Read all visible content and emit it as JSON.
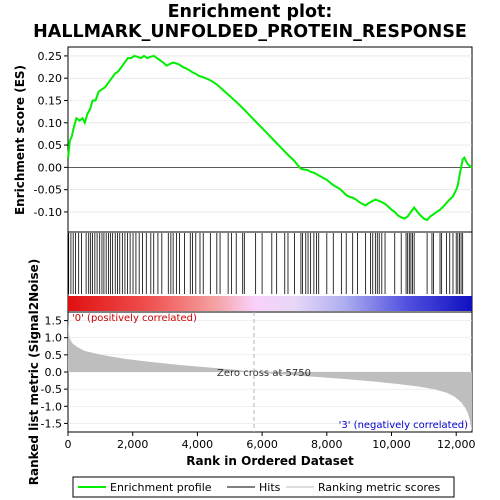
{
  "title_line1": "Enrichment plot:",
  "title_line2": "HALLMARK_UNFOLDED_PROTEIN_RESPONSE",
  "colors": {
    "profile": "#00ee00",
    "hits": "#000000",
    "metric_fill": "#bebebe",
    "positive_label": "#cc0000",
    "negative_label": "#0000cc",
    "zero_line": "#b4b4b4"
  },
  "chart_data": [
    {
      "type": "line",
      "panel": "enrichment-profile",
      "ylabel": "Enrichment score (ES)",
      "xlim": [
        0,
        12488
      ],
      "ylim": [
        -0.145,
        0.27
      ],
      "yticks": [
        0.25,
        0.2,
        0.15,
        0.1,
        0.05,
        0.0,
        -0.05,
        -0.1
      ],
      "ytick_labels": [
        "0.25",
        "0.20",
        "0.15",
        "0.10",
        "0.05",
        "0.00",
        "-0.05",
        "-0.10"
      ],
      "series": [
        {
          "name": "Enrichment profile",
          "x": [
            0,
            60,
            120,
            180,
            260,
            360,
            450,
            520,
            600,
            680,
            760,
            850,
            950,
            1050,
            1150,
            1250,
            1350,
            1450,
            1550,
            1650,
            1750,
            1850,
            1950,
            2050,
            2150,
            2250,
            2350,
            2450,
            2550,
            2650,
            2750,
            2850,
            2950,
            3050,
            3150,
            3250,
            3350,
            3450,
            3550,
            3650,
            3750,
            3850,
            3950,
            4050,
            4150,
            4250,
            4350,
            4450,
            4600,
            4800,
            5000,
            5200,
            5400,
            5600,
            5800,
            6000,
            6200,
            6400,
            6600,
            6800,
            7000,
            7100,
            7200,
            7300,
            7400,
            7500,
            7600,
            7700,
            7800,
            7900,
            8000,
            8100,
            8200,
            8300,
            8400,
            8500,
            8600,
            8700,
            8800,
            8900,
            9000,
            9100,
            9200,
            9300,
            9400,
            9500,
            9600,
            9700,
            9800,
            9900,
            10000,
            10100,
            10200,
            10300,
            10400,
            10500,
            10600,
            10700,
            10800,
            10900,
            11000,
            11100,
            11200,
            11300,
            11400,
            11500,
            11600,
            11700,
            11800,
            11900,
            12000,
            12050,
            12100,
            12150,
            12200,
            12250,
            12300,
            12350,
            12400,
            12488
          ],
          "y": [
            0.02,
            0.06,
            0.07,
            0.09,
            0.11,
            0.105,
            0.11,
            0.1,
            0.12,
            0.13,
            0.15,
            0.15,
            0.17,
            0.175,
            0.18,
            0.19,
            0.2,
            0.21,
            0.215,
            0.225,
            0.235,
            0.245,
            0.245,
            0.25,
            0.248,
            0.245,
            0.25,
            0.245,
            0.248,
            0.25,
            0.245,
            0.24,
            0.235,
            0.228,
            0.232,
            0.235,
            0.233,
            0.23,
            0.225,
            0.222,
            0.218,
            0.213,
            0.21,
            0.205,
            0.203,
            0.2,
            0.197,
            0.193,
            0.186,
            0.173,
            0.16,
            0.147,
            0.133,
            0.118,
            0.103,
            0.088,
            0.073,
            0.058,
            0.043,
            0.028,
            0.014,
            0.005,
            -0.003,
            -0.005,
            -0.006,
            -0.01,
            -0.012,
            -0.016,
            -0.02,
            -0.024,
            -0.028,
            -0.034,
            -0.04,
            -0.044,
            -0.048,
            -0.055,
            -0.062,
            -0.066,
            -0.068,
            -0.072,
            -0.078,
            -0.082,
            -0.085,
            -0.08,
            -0.076,
            -0.072,
            -0.075,
            -0.078,
            -0.082,
            -0.088,
            -0.095,
            -0.1,
            -0.108,
            -0.112,
            -0.115,
            -0.11,
            -0.1,
            -0.09,
            -0.1,
            -0.108,
            -0.115,
            -0.118,
            -0.11,
            -0.105,
            -0.1,
            -0.095,
            -0.088,
            -0.08,
            -0.072,
            -0.065,
            -0.05,
            -0.04,
            -0.02,
            0.0,
            0.018,
            0.022,
            0.015,
            0.008,
            0.004,
            0.0
          ]
        }
      ]
    },
    {
      "type": "bar",
      "panel": "hits",
      "series": [
        {
          "name": "Hits",
          "x": [
            20,
            90,
            160,
            230,
            330,
            420,
            560,
            640,
            700,
            760,
            830,
            900,
            980,
            1050,
            1110,
            1180,
            1250,
            1310,
            1380,
            1460,
            1530,
            1600,
            1680,
            1760,
            1840,
            1920,
            2010,
            2100,
            2200,
            2300,
            2420,
            2560,
            2650,
            2780,
            2900,
            3100,
            3180,
            3250,
            3350,
            3450,
            3600,
            3780,
            3850,
            3950,
            4080,
            4180,
            4400,
            4600,
            4700,
            4950,
            5050,
            5200,
            5400,
            5450,
            5800,
            6000,
            6300,
            6450,
            6700,
            6800,
            7000,
            7200,
            7250,
            7350,
            7420,
            7500,
            7600,
            7680,
            7750,
            8000,
            8200,
            8450,
            8600,
            8800,
            8950,
            9200,
            9350,
            9420,
            9500,
            9560,
            9620,
            9700,
            9800,
            10100,
            10300,
            10450,
            10500,
            10550,
            10600,
            10650,
            10700,
            11100,
            11250,
            11300,
            11500,
            11550,
            11700,
            11800,
            11900,
            12000,
            12050,
            12100,
            12150,
            12200
          ]
        }
      ]
    },
    {
      "type": "area",
      "panel": "ranked-metric",
      "ylabel": "Ranked list metric (Signal2Noise)",
      "xlabel": "Rank in Ordered Dataset",
      "xlim": [
        0,
        12488
      ],
      "ylim": [
        -1.75,
        1.75
      ],
      "xticks": [
        0,
        2000,
        4000,
        6000,
        8000,
        10000,
        12000
      ],
      "xtick_labels": [
        "0",
        "2,000",
        "4,000",
        "6,000",
        "8,000",
        "10,000",
        "12,000"
      ],
      "yticks": [
        1.5,
        1.0,
        0.5,
        0.0,
        -0.5,
        -1.0,
        -1.5
      ],
      "ytick_labels": [
        "1.5",
        "1.0",
        "0.5",
        "0.0",
        "-0.5",
        "-1.0",
        "-1.5"
      ],
      "series": [
        {
          "name": "Ranking metric scores",
          "x": [
            0,
            20,
            60,
            150,
            300,
            500,
            800,
            1200,
            1800,
            2500,
            3500,
            4500,
            5200,
            5750,
            6500,
            7500,
            8500,
            9500,
            10200,
            10800,
            11300,
            11700,
            11950,
            12150,
            12280,
            12360,
            12420,
            12460,
            12488
          ],
          "y": [
            1.55,
            1.2,
            0.95,
            0.82,
            0.72,
            0.62,
            0.55,
            0.47,
            0.38,
            0.3,
            0.2,
            0.12,
            0.06,
            0.0,
            -0.06,
            -0.13,
            -0.2,
            -0.28,
            -0.35,
            -0.42,
            -0.5,
            -0.6,
            -0.72,
            -0.88,
            -1.05,
            -1.2,
            -1.4,
            -1.6,
            -1.72
          ]
        }
      ],
      "annotations": {
        "zero_cross": 5750,
        "zero_cross_text": "Zero cross at 5750",
        "positive_text": "'0' (positively correlated)",
        "negative_text": "'3' (negatively correlated)"
      }
    }
  ],
  "legend": {
    "placement": "bottom",
    "items": [
      {
        "label": "Enrichment profile",
        "color": "#00ee00"
      },
      {
        "label": "Hits",
        "color": "#000000"
      },
      {
        "label": "Ranking metric scores",
        "color": "#bebebe"
      }
    ]
  }
}
